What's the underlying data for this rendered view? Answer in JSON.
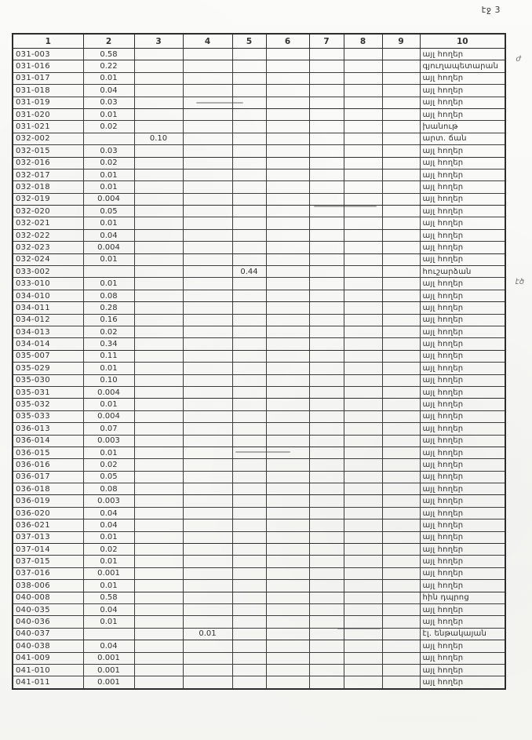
{
  "page": {
    "label": "էջ 3"
  },
  "colors": {
    "paper": "#f8f8f5",
    "ink": "#2d2d2d",
    "grid": "#3d3d3d"
  },
  "annotations": {
    "mark_top_right": "ժ",
    "mark_mid_right": "էծ"
  },
  "table": {
    "headers": [
      "1",
      "2",
      "3",
      "4",
      "5",
      "6",
      "7",
      "8",
      "9",
      "10"
    ],
    "rows": [
      {
        "code": "031-003",
        "c2": "0.58",
        "use": "այլ հողեր"
      },
      {
        "code": "031-016",
        "c2": "0.22",
        "use": "գյուղապետարան"
      },
      {
        "code": "031-017",
        "c2": "0.01",
        "use": "այլ հողեր"
      },
      {
        "code": "031-018",
        "c2": "0.04",
        "use": "այլ հողեր"
      },
      {
        "code": "031-019",
        "c2": "0.03",
        "use": "այլ հողեր"
      },
      {
        "code": "031-020",
        "c2": "0.01",
        "use": "այլ հողեր"
      },
      {
        "code": "031-021",
        "c2": "0.02",
        "use": "խանութ"
      },
      {
        "code": "032-002",
        "c3": "0.10",
        "use": "արտ. ճան"
      },
      {
        "code": "032-015",
        "c2": "0.03",
        "use": "այլ հողեր"
      },
      {
        "code": "032-016",
        "c2": "0.02",
        "use": "այլ հողեր"
      },
      {
        "code": "032-017",
        "c2": "0.01",
        "use": "այլ հողեր"
      },
      {
        "code": "032-018",
        "c2": "0.01",
        "use": "այլ հողեր"
      },
      {
        "code": "032-019",
        "c2": "0.004",
        "use": "այլ հողեր"
      },
      {
        "code": "032-020",
        "c2": "0.05",
        "use": "այլ հողեր"
      },
      {
        "code": "032-021",
        "c2": "0.01",
        "use": "այլ հողեր"
      },
      {
        "code": "032-022",
        "c2": "0.04",
        "use": "այլ հողեր"
      },
      {
        "code": "032-023",
        "c2": "0.004",
        "use": "այլ հողեր"
      },
      {
        "code": "032-024",
        "c2": "0.01",
        "use": "այլ հողեր"
      },
      {
        "code": "033-002",
        "c5": "0.44",
        "use": "հուշարձան"
      },
      {
        "code": "033-010",
        "c2": "0.01",
        "use": "այլ հողեր"
      },
      {
        "code": "034-010",
        "c2": "0.08",
        "use": "այլ հողեր"
      },
      {
        "code": "034-011",
        "c2": "0.28",
        "use": "այլ հողեր"
      },
      {
        "code": "034-012",
        "c2": "0.16",
        "use": "այլ հողեր"
      },
      {
        "code": "034-013",
        "c2": "0.02",
        "use": "այլ հողեր"
      },
      {
        "code": "034-014",
        "c2": "0.34",
        "use": "այլ հողեր"
      },
      {
        "code": "035-007",
        "c2": "0.11",
        "use": "այլ հողեր"
      },
      {
        "code": "035-029",
        "c2": "0.01",
        "use": "այլ հողեր"
      },
      {
        "code": "035-030",
        "c2": "0.10",
        "use": "այլ հողեր"
      },
      {
        "code": "035-031",
        "c2": "0.004",
        "use": "այլ հողեր"
      },
      {
        "code": "035-032",
        "c2": "0.01",
        "use": "այլ հողեր"
      },
      {
        "code": "035-033",
        "c2": "0.004",
        "use": "այլ հողեր"
      },
      {
        "code": "036-013",
        "c2": "0.07",
        "use": "այլ հողեր"
      },
      {
        "code": "036-014",
        "c2": "0.003",
        "use": "այլ հողեր"
      },
      {
        "code": "036-015",
        "c2": "0.01",
        "use": "այլ հողեր"
      },
      {
        "code": "036-016",
        "c2": "0.02",
        "use": "այլ հողեր"
      },
      {
        "code": "036-017",
        "c2": "0.05",
        "use": "այլ հողեր"
      },
      {
        "code": "036-018",
        "c2": "0.08",
        "use": "այլ հողեր"
      },
      {
        "code": "036-019",
        "c2": "0.003",
        "use": "այլ հողեր"
      },
      {
        "code": "036-020",
        "c2": "0.04",
        "use": "այլ հողեր"
      },
      {
        "code": "036-021",
        "c2": "0.04",
        "use": "այլ հողեր"
      },
      {
        "code": "037-013",
        "c2": "0.01",
        "use": "այլ հողեր"
      },
      {
        "code": "037-014",
        "c2": "0.02",
        "use": "այլ հողեր"
      },
      {
        "code": "037-015",
        "c2": "0.01",
        "use": "այլ հողեր"
      },
      {
        "code": "037-016",
        "c2": "0.001",
        "use": "այլ հողեր"
      },
      {
        "code": "038-006",
        "c2": "0.01",
        "use": "այլ հողեր"
      },
      {
        "code": "040-008",
        "c2": "0.58",
        "use": "հին դպրոց"
      },
      {
        "code": "040-035",
        "c2": "0.04",
        "use": "այլ հողեր"
      },
      {
        "code": "040-036",
        "c2": "0.01",
        "use": "այլ հողեր"
      },
      {
        "code": "040-037",
        "c4": "0.01",
        "use": "էլ. ենթակայան"
      },
      {
        "code": "040-038",
        "c2": "0.04",
        "use": "այլ հողեր"
      },
      {
        "code": "041-009",
        "c2": "0.001",
        "use": "այլ հողեր"
      },
      {
        "code": "041-010",
        "c2": "0.001",
        "use": "այլ հողեր"
      },
      {
        "code": "041-011",
        "c2": "0.001",
        "use": "այլ հողեր"
      }
    ]
  }
}
